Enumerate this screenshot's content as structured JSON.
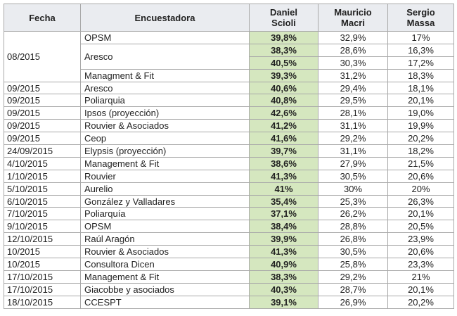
{
  "table": {
    "headers": {
      "fecha": "Fecha",
      "encuestadora": "Encuestadora",
      "scioli_line1": "Daniel",
      "scioli_line2": "Scioli",
      "macri_line1": "Mauricio",
      "macri_line2": "Macri",
      "massa_line1": "Sergio",
      "massa_line2": "Massa"
    },
    "group_082015": {
      "fecha": "08/2015",
      "rows": [
        {
          "encuestadora": "OPSM",
          "scioli": "39,8%",
          "macri": "32,9%",
          "massa": "17%"
        },
        {
          "encuestadora": "Aresco",
          "scioli": "38,3%",
          "macri": "28,6%",
          "massa": "16,3%"
        },
        {
          "scioli": "40,5%",
          "macri": "30,3%",
          "massa": "17,2%"
        },
        {
          "encuestadora": "Managment & Fit",
          "scioli": "39,3%",
          "macri": "31,2%",
          "massa": "18,3%"
        }
      ]
    },
    "rows": [
      {
        "fecha": "09/2015",
        "encuestadora": "Aresco",
        "scioli": "40,6%",
        "macri": "29,4%",
        "massa": "18,1%"
      },
      {
        "fecha": "09/2015",
        "encuestadora": "Poliarquia",
        "scioli": "40,8%",
        "macri": "29,5%",
        "massa": "20,1%"
      },
      {
        "fecha": "09/2015",
        "encuestadora": "Ipsos (proyección)",
        "scioli": "42,6%",
        "macri": "28,1%",
        "massa": "19,0%"
      },
      {
        "fecha": "09/2015",
        "encuestadora": "Rouvier & Asociados",
        "scioli": "41,2%",
        "macri": "31,1%",
        "massa": "19,9%"
      },
      {
        "fecha": "09/2015",
        "encuestadora": "Ceop",
        "scioli": "41,6%",
        "macri": "29,2%",
        "massa": "20,2%"
      },
      {
        "fecha": "24/09/2015",
        "encuestadora": "Elypsis (proyección)",
        "scioli": "39,7%",
        "macri": "31,1%",
        "massa": "18,2%"
      },
      {
        "fecha": "4/10/2015",
        "encuestadora": "Management & Fit",
        "scioli": "38,6%",
        "macri": "27,9%",
        "massa": "21,5%"
      },
      {
        "fecha": "1/10/2015",
        "encuestadora": "Rouvier",
        "scioli": "41,3%",
        "macri": "30,5%",
        "massa": "20,6%"
      },
      {
        "fecha": "5/10/2015",
        "encuestadora": "Aurelio",
        "scioli": "41%",
        "macri": "30%",
        "massa": "20%"
      },
      {
        "fecha": "6/10/2015",
        "encuestadora": "González y Valladares",
        "scioli": "35,4%",
        "macri": "25,3%",
        "massa": "26,3%"
      },
      {
        "fecha": "7/10/2015",
        "encuestadora": "Poliarquía",
        "scioli": "37,1%",
        "macri": "26,2%",
        "massa": "20,1%"
      },
      {
        "fecha": "9/10/2015",
        "encuestadora": "OPSM",
        "scioli": "38,4%",
        "macri": "28,8%",
        "massa": "20,5%"
      },
      {
        "fecha": "12/10/2015",
        "encuestadora": "Raúl Aragón",
        "scioli": "39,9%",
        "macri": "26,8%",
        "massa": "23,9%"
      },
      {
        "fecha": "10/2015",
        "encuestadora": "Rouvier & Asociados",
        "scioli": "41,3%",
        "macri": "30,5%",
        "massa": "20,6%"
      },
      {
        "fecha": "10/2015",
        "encuestadora": "Consultora Dicen",
        "scioli": "40,9%",
        "macri": "25,8%",
        "massa": "23,3%"
      },
      {
        "fecha": "17/10/2015",
        "encuestadora": "Management & Fit",
        "scioli": "38,3%",
        "macri": "29,2%",
        "massa": "21%"
      },
      {
        "fecha": "17/10/2015",
        "encuestadora": "Giacobbe y asociados",
        "scioli": "40,3%",
        "macri": "28,7%",
        "massa": "20,1%"
      },
      {
        "fecha": "18/10/2015",
        "encuestadora": "CCESPT",
        "scioli": "39,1%",
        "macri": "26,9%",
        "massa": "20,2%"
      }
    ]
  },
  "colors": {
    "header_bg": "#eaecf0",
    "leader_bg": "#d5e7bf",
    "border": "#a9a9a9",
    "text": "#222222"
  }
}
